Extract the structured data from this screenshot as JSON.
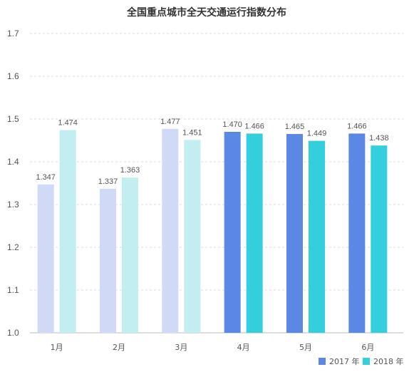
{
  "chart_data": {
    "type": "bar",
    "title": "全国重点城市全天交通运行指数分布",
    "categories": [
      "1月",
      "2月",
      "3月",
      "4月",
      "5月",
      "6月"
    ],
    "series": [
      {
        "name": "2017 年",
        "values": [
          1.347,
          1.337,
          1.477,
          1.47,
          1.465,
          1.466
        ],
        "labels": [
          "1.347",
          "1.337",
          "1.477",
          "1.470",
          "1.465",
          "1.466"
        ],
        "color": "#5b87e6",
        "faded_color": "#d0daf6"
      },
      {
        "name": "2018 年",
        "values": [
          1.474,
          1.363,
          1.451,
          1.466,
          1.449,
          1.438
        ],
        "labels": [
          "1.474",
          "1.363",
          "1.451",
          "1.466",
          "1.449",
          "1.438"
        ],
        "color": "#34cfdc",
        "faded_color": "#c2eef1"
      }
    ],
    "highlighted_categories": [
      "4月",
      "5月",
      "6月"
    ],
    "ylim": [
      1.0,
      1.7
    ],
    "yticks": [
      "1.0",
      "1.1",
      "1.2",
      "1.3",
      "1.4",
      "1.5",
      "1.6",
      "1.7"
    ],
    "grid": true,
    "legend_position": "bottom-right"
  }
}
